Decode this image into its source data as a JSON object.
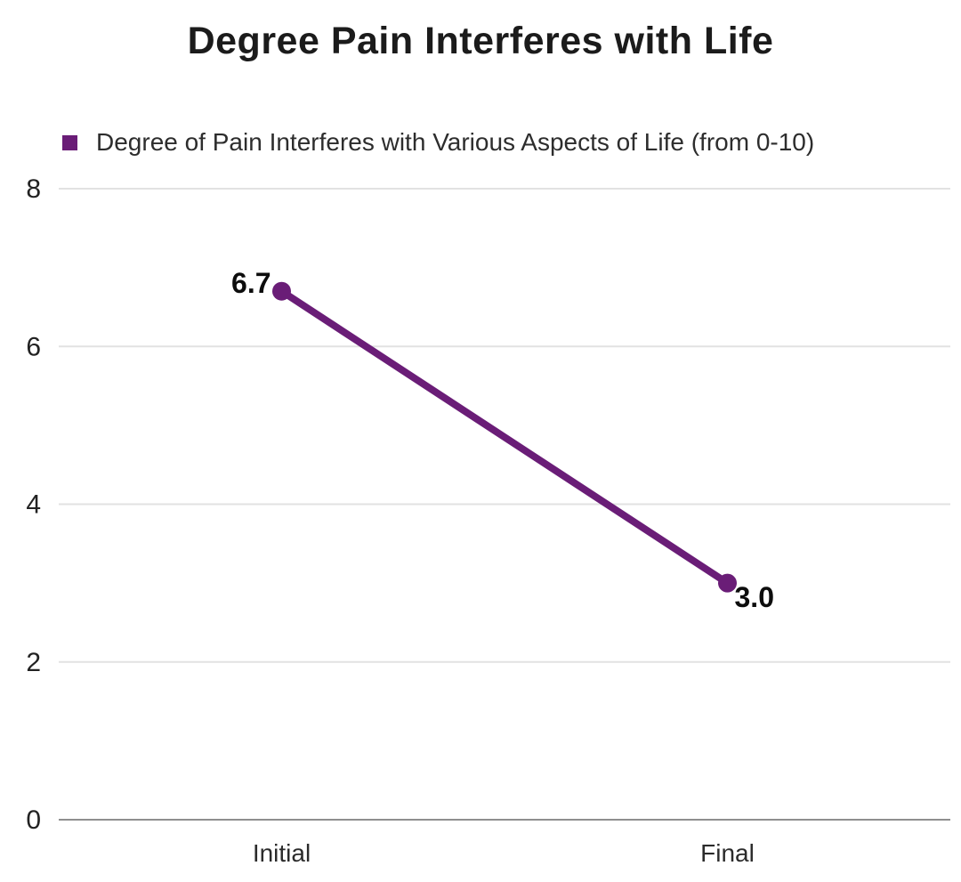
{
  "header": {
    "title": "Degree Pain Interferes with Life"
  },
  "legend": {
    "marker_color": "#6A1D77",
    "label": "Degree of Pain Interferes with Various Aspects of Life (from 0-10)"
  },
  "colors": {
    "series": "#6A1D77",
    "gridline": "#e2e2e2",
    "zero_axis": "#8f8f8f",
    "tick_text": "#222222",
    "label_text": "#0d0d0d"
  },
  "chart_data": {
    "type": "line",
    "title": "Degree Pain Interferes with Life",
    "categories": [
      "Initial",
      "Final"
    ],
    "series": [
      {
        "name": "Degree of Pain Interferes with Various Aspects of Life (from 0-10)",
        "values": [
          6.7,
          3.0
        ]
      }
    ],
    "point_labels": [
      "6.7",
      "3.0"
    ],
    "xlabel": "",
    "ylabel": "",
    "ylim": [
      0,
      8
    ],
    "yticks": [
      0,
      2,
      4,
      6,
      8
    ],
    "grid": true,
    "legend_position": "top-left"
  }
}
